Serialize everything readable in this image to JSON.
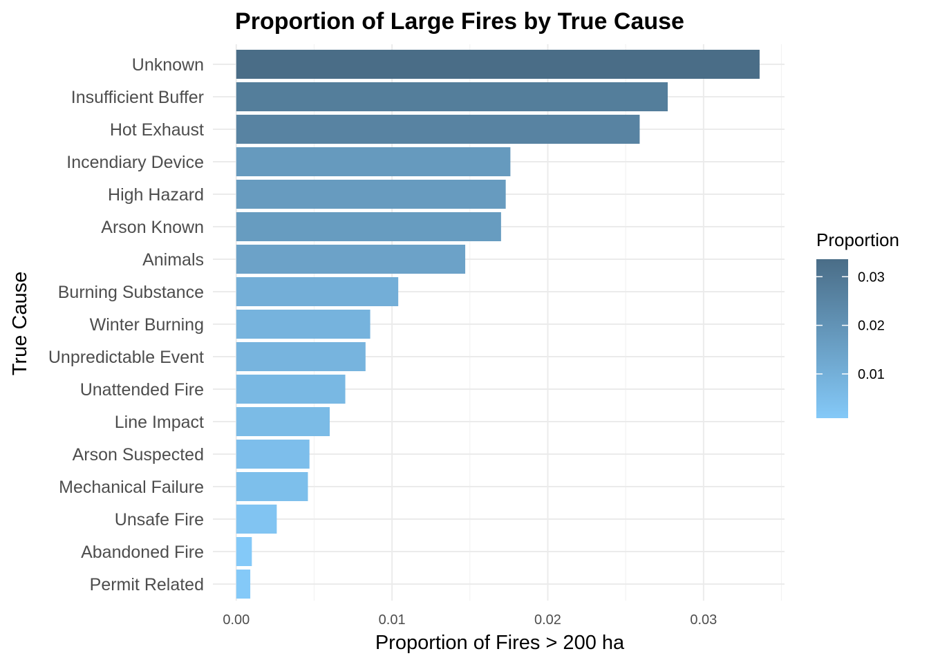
{
  "chart_data": {
    "type": "bar",
    "orientation": "horizontal",
    "title": "Proportion of Large Fires by True Cause",
    "xlabel": "Proportion of Fires > 200 ha",
    "ylabel": "True Cause",
    "categories": [
      "Unknown",
      "Insufficient Buffer",
      "Hot Exhaust",
      "Incendiary Device",
      "High Hazard",
      "Arson Known",
      "Animals",
      "Burning Substance",
      "Winter Burning",
      "Unpredictable Event",
      "Unattended Fire",
      "Line Impact",
      "Arson Suspected",
      "Mechanical Failure",
      "Unsafe Fire",
      "Abandoned Fire",
      "Permit Related"
    ],
    "values": [
      0.0336,
      0.0277,
      0.0259,
      0.0176,
      0.0173,
      0.017,
      0.0147,
      0.0104,
      0.0086,
      0.0083,
      0.007,
      0.006,
      0.0047,
      0.0046,
      0.0026,
      0.001,
      0.0009
    ],
    "xlim": [
      -0.0015,
      0.0352
    ],
    "xticks": [
      0,
      0.01,
      0.02,
      0.03
    ],
    "xtick_labels": [
      "0.00",
      "0.01",
      "0.02",
      "0.03"
    ],
    "grid": true,
    "legend": {
      "title": "Proportion",
      "position": "right",
      "ticks": [
        0.01,
        0.02,
        0.03
      ],
      "tick_labels": [
        "0.01",
        "0.02",
        "0.03"
      ],
      "range": [
        0.0009,
        0.0336
      ],
      "color_low": "#84c9f8",
      "color_high": "#4a6d87"
    }
  }
}
